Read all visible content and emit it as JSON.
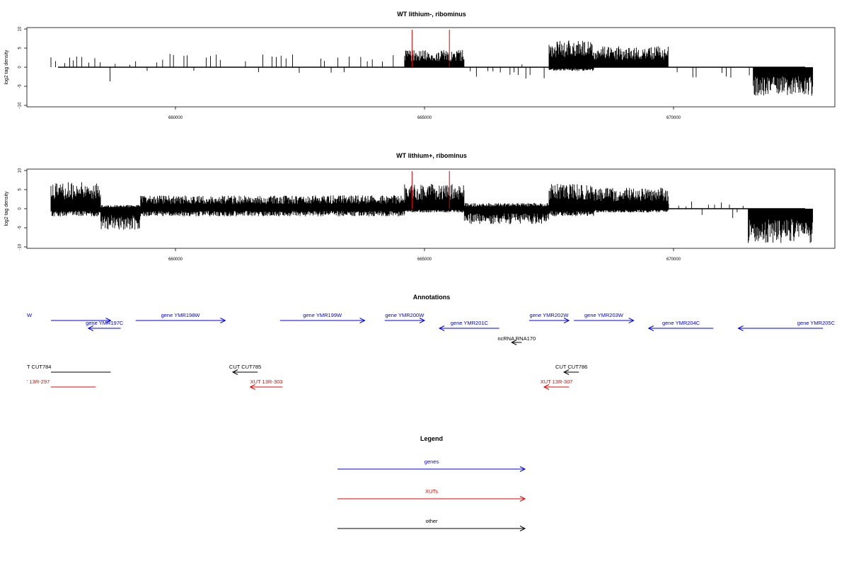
{
  "chart_data": [
    {
      "type": "bar",
      "title": "WT lithium-, ribominus",
      "ylabel": "log2 tag density",
      "xlabel": "",
      "ylim": [
        -10,
        10
      ],
      "xlim": [
        657500,
        673000
      ],
      "yticks": [
        "10",
        "5",
        "0",
        "-5",
        "-10"
      ],
      "xticks": [
        "660000",
        "665000",
        "670000"
      ],
      "grid": false,
      "positions_of_marker_lines": [
        664750,
        665500
      ],
      "marker_color": "#e00000",
      "signal_segments": [
        {
          "from": 657500,
          "to": 658500,
          "kind": "sparse",
          "amp_pos": 3,
          "amp_neg": 0
        },
        {
          "from": 658500,
          "to": 659300,
          "kind": "sparse",
          "amp_pos": 2,
          "amp_neg": 4
        },
        {
          "from": 659300,
          "to": 664600,
          "kind": "sparse",
          "amp_pos": 3.5,
          "amp_neg": 1.5
        },
        {
          "from": 664600,
          "to": 665800,
          "kind": "dense",
          "amp_pos": 4.5,
          "amp_neg": 0.5
        },
        {
          "from": 665800,
          "to": 667500,
          "kind": "sparse",
          "amp_pos": 1,
          "amp_neg": 3
        },
        {
          "from": 667500,
          "to": 668400,
          "kind": "dense",
          "amp_pos": 7,
          "amp_neg": 1
        },
        {
          "from": 668400,
          "to": 669900,
          "kind": "dense",
          "amp_pos": 5.5,
          "amp_neg": 0.5
        },
        {
          "from": 669900,
          "to": 671600,
          "kind": "sparse",
          "amp_pos": 1,
          "amp_neg": 3
        },
        {
          "from": 671600,
          "to": 672800,
          "kind": "dense",
          "amp_pos": 0.5,
          "amp_neg": 7.5
        }
      ]
    },
    {
      "type": "bar",
      "title": "WT lithium+, ribominus",
      "ylabel": "log2 tag density",
      "xlabel": "",
      "ylim": [
        -10,
        10
      ],
      "xlim": [
        657500,
        673000
      ],
      "yticks": [
        "10",
        "5",
        "0",
        "-5",
        "-10"
      ],
      "xticks": [
        "660000",
        "665000",
        "670000"
      ],
      "grid": false,
      "positions_of_marker_lines": [
        664750,
        665500
      ],
      "marker_color": "#e00000",
      "signal_segments": [
        {
          "from": 657500,
          "to": 658500,
          "kind": "dense",
          "amp_pos": 7,
          "amp_neg": 2
        },
        {
          "from": 658500,
          "to": 659300,
          "kind": "dense",
          "amp_pos": 1,
          "amp_neg": 5.5
        },
        {
          "from": 659300,
          "to": 664600,
          "kind": "dense",
          "amp_pos": 3.5,
          "amp_neg": 2
        },
        {
          "from": 664600,
          "to": 665800,
          "kind": "dense",
          "amp_pos": 6.5,
          "amp_neg": 1
        },
        {
          "from": 665800,
          "to": 667500,
          "kind": "dense",
          "amp_pos": 1.5,
          "amp_neg": 4
        },
        {
          "from": 667500,
          "to": 668400,
          "kind": "dense",
          "amp_pos": 6.5,
          "amp_neg": 2
        },
        {
          "from": 668400,
          "to": 669900,
          "kind": "dense",
          "amp_pos": 5.5,
          "amp_neg": 1
        },
        {
          "from": 669900,
          "to": 671500,
          "kind": "sparse",
          "amp_pos": 2,
          "amp_neg": 2.5
        },
        {
          "from": 671500,
          "to": 672800,
          "kind": "dense",
          "amp_pos": 0.5,
          "amp_neg": 9
        }
      ]
    }
  ],
  "annotations": {
    "title": "Annotations",
    "xlim": [
      657500,
      673000
    ],
    "features": [
      {
        "label": "W",
        "start": 657500,
        "end": 658700,
        "strand": "+",
        "color": "#0000ee",
        "row": 0,
        "label_align": "start"
      },
      {
        "label": "gene YMR197C",
        "start": 658250,
        "end": 658900,
        "strand": "-",
        "color": "#0000ee",
        "row": 1,
        "label_align": "center"
      },
      {
        "label": "gene YMR198W",
        "start": 659200,
        "end": 661000,
        "strand": "+",
        "color": "#0000ee",
        "row": 0,
        "label_align": "center"
      },
      {
        "label": "gene YMR199W",
        "start": 662100,
        "end": 663800,
        "strand": "+",
        "color": "#0000ee",
        "row": 0,
        "label_align": "center"
      },
      {
        "label": "gene YMR200W",
        "start": 664200,
        "end": 665000,
        "strand": "+",
        "color": "#0000ee",
        "row": 0,
        "label_align": "center"
      },
      {
        "label": "gene YMR201C",
        "start": 665300,
        "end": 666500,
        "strand": "-",
        "color": "#0000ee",
        "row": 1,
        "label_align": "center"
      },
      {
        "label": "gene YMR202W",
        "start": 667100,
        "end": 667900,
        "strand": "+",
        "color": "#0000ee",
        "row": 0,
        "label_align": "center"
      },
      {
        "label": "gene YMR203W",
        "start": 668000,
        "end": 669200,
        "strand": "+",
        "color": "#0000ee",
        "row": 0,
        "label_align": "center"
      },
      {
        "label": "gene YMR204C",
        "start": 669500,
        "end": 670800,
        "strand": "-",
        "color": "#0000ee",
        "row": 1,
        "label_align": "center"
      },
      {
        "label": "gene YMR205C",
        "start": 671300,
        "end": 673000,
        "strand": "-",
        "color": "#0000ee",
        "row": 1,
        "label_align": "end"
      },
      {
        "label": "ncRNA RNA170",
        "start": 666750,
        "end": 666950,
        "strand": "-",
        "color": "#000000",
        "row": 2,
        "label_align": "center"
      },
      {
        "label": "T CUT784",
        "start": 657500,
        "end": 658700,
        "strand": "none",
        "color": "#000000",
        "row": 3,
        "label_align": "start"
      },
      {
        "label": "CUT CUT785",
        "start": 661150,
        "end": 661650,
        "strand": "-",
        "color": "#000000",
        "row": 3,
        "label_align": "center"
      },
      {
        "label": "CUT CUT786",
        "start": 667800,
        "end": 668100,
        "strand": "-",
        "color": "#000000",
        "row": 3,
        "label_align": "center"
      },
      {
        "label": "' 13R-297",
        "start": 657500,
        "end": 658400,
        "strand": "none",
        "color": "#ee0000",
        "row": 4,
        "label_align": "start"
      },
      {
        "label": "XUT 13R-303",
        "start": 661500,
        "end": 662150,
        "strand": "-",
        "color": "#ee0000",
        "row": 4,
        "label_align": "center"
      },
      {
        "label": "XUT 13R-307",
        "start": 667400,
        "end": 667900,
        "strand": "-",
        "color": "#ee0000",
        "row": 4,
        "label_align": "center"
      }
    ]
  },
  "legend": {
    "title": "Legend",
    "items": [
      {
        "label": "genes",
        "color": "#0000ee"
      },
      {
        "label": "XUTs",
        "color": "#ee0000"
      },
      {
        "label": "other",
        "color": "#000000"
      }
    ]
  }
}
